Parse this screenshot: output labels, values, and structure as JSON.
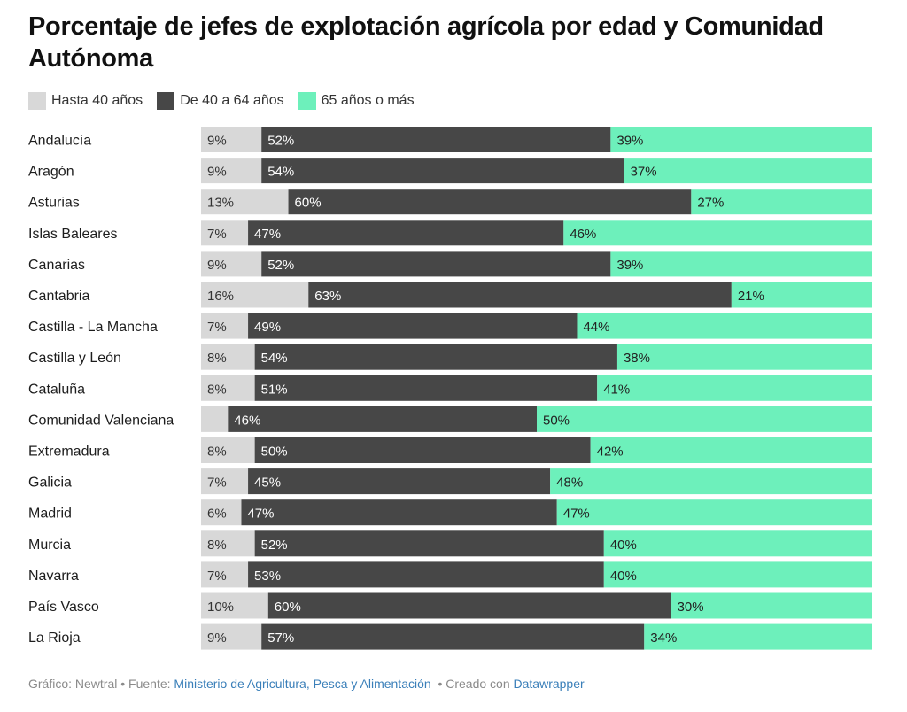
{
  "title": "Porcentaje de jefes de explotación agrícola por edad y Comunidad Autónoma",
  "footer": {
    "grafico_label": "Gráfico: Newtral",
    "fuente_label": "• Fuente:",
    "fuente_link": "Ministerio de Agricultura, Pesca y Alimentación",
    "creado_label": "• Creado con",
    "creado_link": "Datawrapper"
  },
  "colors": {
    "hasta40": "#d8d8d8",
    "de40a64": "#474747",
    "mas65": "#6df0bb"
  },
  "chart_data": {
    "type": "bar",
    "orientation": "horizontal",
    "stacked": true,
    "normalized": true,
    "legend_position": "top-left",
    "grid": false,
    "categories": [
      "Andalucía",
      "Aragón",
      "Asturias",
      "Islas Baleares",
      "Canarias",
      "Cantabria",
      "Castilla - La Mancha",
      "Castilla y León",
      "Cataluña",
      "Comunidad Valenciana",
      "Extremadura",
      "Galicia",
      "Madrid",
      "Murcia",
      "Navarra",
      "País Vasco",
      "La Rioja"
    ],
    "series": [
      {
        "name": "Hasta 40 años",
        "values": [
          9,
          9,
          13,
          7,
          9,
          16,
          7,
          8,
          8,
          4,
          8,
          7,
          6,
          8,
          7,
          10,
          9
        ]
      },
      {
        "name": "De 40 a 64 años",
        "values": [
          52,
          54,
          60,
          47,
          52,
          63,
          49,
          54,
          51,
          46,
          50,
          45,
          47,
          52,
          53,
          60,
          57
        ]
      },
      {
        "name": "65 años o más",
        "values": [
          39,
          37,
          27,
          46,
          39,
          21,
          44,
          38,
          41,
          50,
          42,
          48,
          47,
          40,
          40,
          30,
          34
        ]
      }
    ],
    "data_labels": [
      [
        "9%",
        "52%",
        "39%"
      ],
      [
        "9%",
        "54%",
        "37%"
      ],
      [
        "13%",
        "60%",
        "27%"
      ],
      [
        "7%",
        "47%",
        "46%"
      ],
      [
        "9%",
        "52%",
        "39%"
      ],
      [
        "16%",
        "63%",
        "21%"
      ],
      [
        "7%",
        "49%",
        "44%"
      ],
      [
        "8%",
        "54%",
        "38%"
      ],
      [
        "8%",
        "51%",
        "41%"
      ],
      [
        "",
        "46%",
        "50%"
      ],
      [
        "8%",
        "50%",
        "42%"
      ],
      [
        "7%",
        "45%",
        "48%"
      ],
      [
        "6%",
        "47%",
        "47%"
      ],
      [
        "8%",
        "52%",
        "40%"
      ],
      [
        "7%",
        "53%",
        "40%"
      ],
      [
        "10%",
        "60%",
        "30%"
      ],
      [
        "9%",
        "57%",
        "34%"
      ]
    ]
  }
}
